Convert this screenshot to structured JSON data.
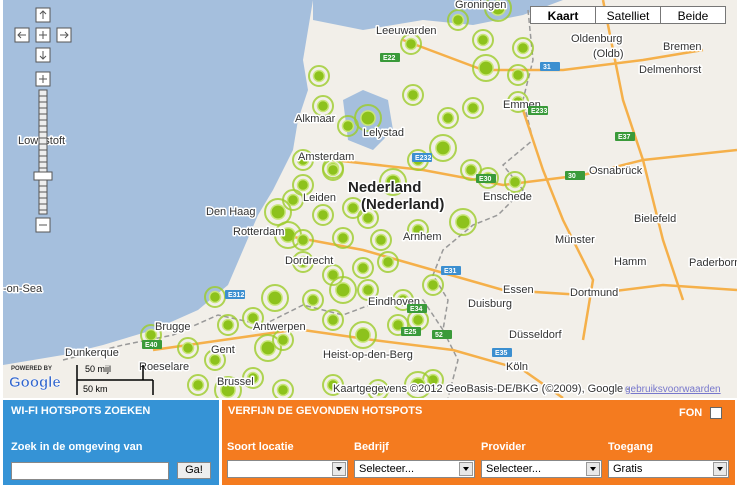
{
  "map": {
    "type_buttons": [
      "Kaart",
      "Satelliet",
      "Beide"
    ],
    "places": [
      "Leeuwarden",
      "Groningen",
      "Oldenburg",
      "(Oldb)",
      "Bremen",
      "Delmenhorst",
      "Alkmaar",
      "Lelystad",
      "Emmen",
      "Lowestoft",
      "Amsterdam",
      "Nederland",
      "(Nederland)",
      "Osnabrück",
      "Den Haag",
      "Leiden",
      "Enschede",
      "Bielefeld",
      "Rotterdam",
      "Arnhem",
      "Münster",
      "Hamm",
      "Paderborn",
      "Dordrecht",
      "-on-Sea",
      "Eindhoven",
      "Essen",
      "Dortmund",
      "Duisburg",
      "Brugge",
      "Antwerpen",
      "Düsseldorf",
      "Dunkerque",
      "Gent",
      "Roeselare",
      "Heist-op-den-Berg",
      "Köln",
      "Brussel"
    ],
    "roads": [
      "E22",
      "31",
      "E233",
      "E37",
      "E232",
      "E30",
      "30",
      "E31",
      "E34",
      "E25",
      "E312",
      "E40",
      "52",
      "E35"
    ],
    "scale": [
      "50 mijl",
      "50 km"
    ],
    "powered_by": "POWERED BY",
    "logo": "Google",
    "copyright": "Kaartgegevens ©2012 GeoBasis-DE/BKG (©2009), Google -",
    "terms_link": "gebruiksvoorwaarden"
  },
  "search_panel": {
    "title": "WI-FI HOTSPOTS ZOEKEN",
    "label": "Zoek in de omgeving van",
    "button": "Ga!"
  },
  "filter_panel": {
    "title": "VERFIJN DE GEVONDEN HOTSPOTS",
    "fon": "FON",
    "filters": [
      {
        "label": "Soort locatie"
      },
      {
        "label": "Bedrijf",
        "selected": "Selecteer..."
      },
      {
        "label": "Provider",
        "selected": "Selecteer..."
      },
      {
        "label": "Toegang",
        "selected": "Gratis"
      }
    ]
  }
}
